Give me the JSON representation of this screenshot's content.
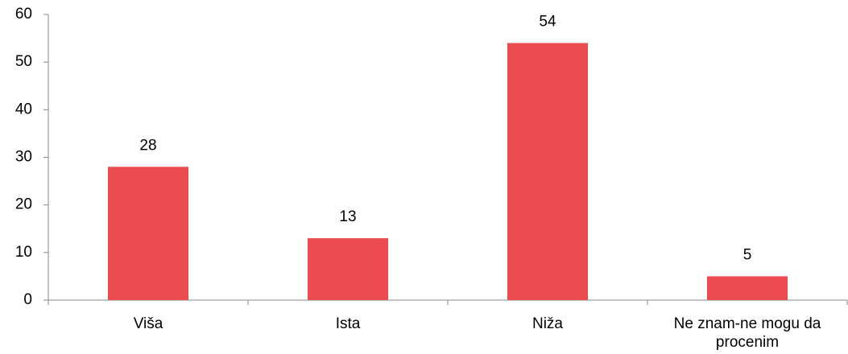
{
  "chart_data": {
    "type": "bar",
    "categories": [
      "Viša",
      "Ista",
      "Niža",
      "Ne znam-ne mogu da procenim"
    ],
    "values": [
      28,
      13,
      54,
      5
    ],
    "color": "#e94b4f",
    "ylim": [
      0,
      60
    ],
    "yticks": [
      0,
      10,
      20,
      30,
      40,
      50,
      60
    ],
    "grid": false
  }
}
